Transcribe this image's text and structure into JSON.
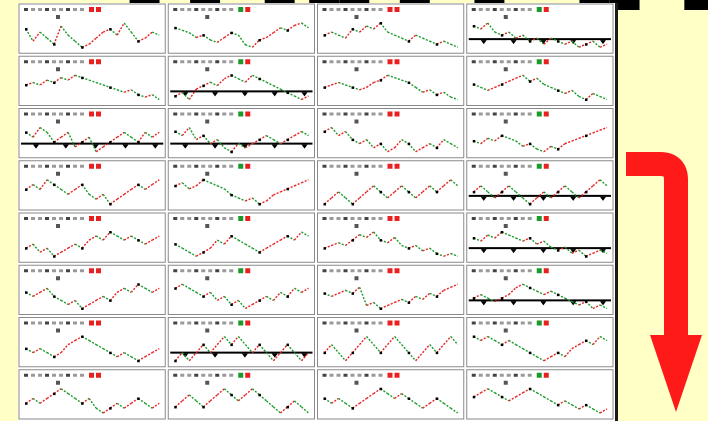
{
  "chart_data": {
    "type": "line",
    "layout": {
      "rows": 8,
      "cols": 4
    },
    "panel_header_text": [
      "",
      "",
      "",
      ""
    ],
    "series_colors": {
      "up": "#e82020",
      "down": "#1a9a2a",
      "base": "#000000"
    },
    "panels": [
      {
        "r": 0,
        "c": 0,
        "y": [
          3,
          -1,
          2,
          0,
          -2,
          4,
          1,
          -1,
          -3,
          -2,
          0,
          2,
          3,
          1,
          5,
          2,
          -1,
          0,
          2,
          1
        ],
        "baseline": false
      },
      {
        "r": 0,
        "c": 1,
        "y": [
          2,
          1,
          0,
          -2,
          -1,
          -3,
          -4,
          -2,
          0,
          -1,
          -5,
          -6,
          -3,
          -2,
          0,
          2,
          1,
          3,
          4,
          2
        ],
        "baseline": false
      },
      {
        "r": 0,
        "c": 2,
        "y": [
          0,
          1,
          0,
          -1,
          2,
          1,
          3,
          2,
          4,
          1,
          0,
          -1,
          -2,
          0,
          -1,
          -2,
          -3,
          -2,
          -3,
          -4
        ],
        "baseline": false
      },
      {
        "r": 0,
        "c": 3,
        "y": [
          3,
          2,
          4,
          1,
          0,
          1,
          -1,
          0,
          -2,
          -1,
          -3,
          -1,
          -2,
          -3,
          -2,
          -4,
          -3,
          -2,
          -4,
          -3
        ],
        "baseline": true
      },
      {
        "r": 1,
        "c": 0,
        "y": [
          1,
          2,
          1,
          3,
          2,
          4,
          3,
          5,
          4,
          3,
          2,
          1,
          0,
          -1,
          -2,
          -1,
          -3,
          -4,
          -3,
          -5
        ],
        "baseline": false
      },
      {
        "r": 1,
        "c": 1,
        "y": [
          -2,
          -1,
          -3,
          0,
          1,
          2,
          1,
          3,
          4,
          3,
          2,
          4,
          3,
          2,
          1,
          0,
          -1,
          -2,
          -3,
          -2
        ],
        "baseline": true
      },
      {
        "r": 1,
        "c": 2,
        "y": [
          0,
          1,
          2,
          1,
          0,
          -1,
          0,
          2,
          3,
          5,
          4,
          3,
          2,
          0,
          -2,
          -1,
          -3,
          -2,
          -4,
          -5
        ],
        "baseline": false
      },
      {
        "r": 1,
        "c": 3,
        "y": [
          1,
          0,
          -1,
          0,
          1,
          2,
          3,
          4,
          2,
          3,
          1,
          0,
          -1,
          -2,
          -1,
          -3,
          -4,
          -2,
          -3,
          -4
        ],
        "baseline": false
      },
      {
        "r": 2,
        "c": 0,
        "y": [
          1,
          0,
          2,
          1,
          -1,
          0,
          1,
          -2,
          -1,
          0,
          -3,
          -2,
          -1,
          0,
          1,
          0,
          -1,
          1,
          0,
          1
        ],
        "baseline": true
      },
      {
        "r": 2,
        "c": 1,
        "y": [
          2,
          1,
          3,
          0,
          1,
          -1,
          0,
          -2,
          -3,
          -1,
          -2,
          -1,
          0,
          1,
          0,
          -1,
          0,
          1,
          2,
          1
        ],
        "baseline": true
      },
      {
        "r": 2,
        "c": 2,
        "y": [
          1,
          2,
          0,
          1,
          -1,
          -2,
          -1,
          -3,
          -2,
          -4,
          -3,
          -1,
          -2,
          -4,
          -3,
          -2,
          -3,
          -1,
          -2,
          -3
        ],
        "baseline": false
      },
      {
        "r": 2,
        "c": 3,
        "y": [
          0,
          -1,
          1,
          0,
          2,
          1,
          0,
          -2,
          -1,
          -3,
          -4,
          -2,
          -3,
          -1,
          0,
          1,
          2,
          3,
          4,
          5
        ],
        "baseline": false
      },
      {
        "r": 3,
        "c": 0,
        "y": [
          0,
          1,
          0,
          2,
          1,
          0,
          -1,
          0,
          1,
          -1,
          -2,
          -1,
          -3,
          -2,
          -1,
          0,
          1,
          0,
          1,
          2
        ],
        "baseline": false
      },
      {
        "r": 3,
        "c": 1,
        "y": [
          1,
          2,
          0,
          1,
          3,
          2,
          1,
          0,
          -2,
          -3,
          -4,
          -3,
          -5,
          -4,
          -2,
          -1,
          0,
          1,
          2,
          3
        ],
        "baseline": false
      },
      {
        "r": 3,
        "c": 2,
        "y": [
          -1,
          0,
          1,
          0,
          -1,
          0,
          1,
          2,
          1,
          0,
          1,
          2,
          1,
          0,
          1,
          2,
          1,
          2,
          3,
          2
        ],
        "baseline": false
      },
      {
        "r": 3,
        "c": 3,
        "y": [
          1,
          2,
          1,
          0,
          1,
          2,
          1,
          0,
          -1,
          0,
          1,
          0,
          1,
          2,
          1,
          0,
          1,
          2,
          3,
          2
        ],
        "baseline": true
      },
      {
        "r": 4,
        "c": 0,
        "y": [
          0,
          1,
          -1,
          0,
          -2,
          -1,
          0,
          1,
          0,
          2,
          3,
          2,
          4,
          3,
          2,
          3,
          2,
          1,
          2,
          3
        ],
        "baseline": false
      },
      {
        "r": 4,
        "c": 1,
        "y": [
          1,
          0,
          -1,
          -2,
          -1,
          0,
          2,
          1,
          3,
          2,
          1,
          0,
          -1,
          0,
          1,
          2,
          3,
          2,
          4,
          3
        ],
        "baseline": false
      },
      {
        "r": 4,
        "c": 2,
        "y": [
          0,
          1,
          2,
          1,
          3,
          5,
          4,
          6,
          3,
          2,
          4,
          1,
          0,
          1,
          -1,
          0,
          -2,
          -3,
          -2,
          -3
        ],
        "baseline": false
      },
      {
        "r": 4,
        "c": 3,
        "y": [
          3,
          2,
          4,
          3,
          5,
          4,
          3,
          2,
          3,
          1,
          2,
          0,
          -1,
          0,
          -2,
          -1,
          -3,
          -2,
          -1,
          -2
        ],
        "baseline": true
      },
      {
        "r": 5,
        "c": 0,
        "y": [
          1,
          0,
          1,
          2,
          0,
          -1,
          -2,
          -1,
          -3,
          -2,
          -1,
          0,
          -1,
          1,
          2,
          1,
          3,
          2,
          1,
          2
        ],
        "baseline": false
      },
      {
        "r": 5,
        "c": 1,
        "y": [
          2,
          3,
          2,
          1,
          0,
          1,
          -1,
          0,
          -2,
          -1,
          -3,
          -2,
          -1,
          0,
          -1,
          1,
          0,
          2,
          1,
          2
        ],
        "baseline": false
      },
      {
        "r": 5,
        "c": 2,
        "y": [
          1,
          0,
          1,
          2,
          1,
          3,
          -3,
          -2,
          -4,
          -3,
          -2,
          -1,
          -2,
          0,
          -1,
          1,
          0,
          2,
          3,
          4
        ],
        "baseline": false
      },
      {
        "r": 5,
        "c": 3,
        "y": [
          0,
          1,
          0,
          -1,
          0,
          1,
          3,
          4,
          3,
          2,
          1,
          2,
          1,
          0,
          -1,
          -2,
          -1,
          -3,
          -2,
          -3
        ],
        "baseline": true
      },
      {
        "r": 6,
        "c": 0,
        "y": [
          1,
          0,
          1,
          0,
          -1,
          0,
          2,
          3,
          4,
          3,
          2,
          1,
          0,
          -1,
          0,
          -1,
          -2,
          -1,
          0,
          1
        ],
        "baseline": false
      },
      {
        "r": 6,
        "c": 1,
        "y": [
          -1,
          0,
          -1,
          0,
          1,
          0,
          1,
          2,
          1,
          2,
          1,
          0,
          1,
          0,
          -1,
          0,
          1,
          0,
          -1,
          0
        ],
        "baseline": true
      },
      {
        "r": 6,
        "c": 2,
        "y": [
          0,
          1,
          0,
          -1,
          0,
          1,
          2,
          1,
          0,
          1,
          2,
          1,
          0,
          -1,
          0,
          1,
          0,
          1,
          2,
          1
        ],
        "baseline": false
      },
      {
        "r": 6,
        "c": 3,
        "y": [
          2,
          1,
          2,
          1,
          0,
          1,
          0,
          -1,
          -2,
          -3,
          -4,
          -3,
          -2,
          -3,
          -1,
          0,
          1,
          0,
          2,
          1
        ],
        "baseline": false
      },
      {
        "r": 7,
        "c": 0,
        "y": [
          0,
          1,
          0,
          1,
          2,
          3,
          2,
          1,
          0,
          1,
          -1,
          -2,
          -1,
          0,
          -1,
          0,
          1,
          0,
          -1,
          0
        ],
        "baseline": false
      },
      {
        "r": 7,
        "c": 1,
        "y": [
          0,
          1,
          2,
          1,
          0,
          1,
          2,
          3,
          2,
          1,
          2,
          3,
          2,
          1,
          0,
          -1,
          0,
          1,
          0,
          -1
        ],
        "baseline": false
      },
      {
        "r": 7,
        "c": 2,
        "y": [
          1,
          0,
          1,
          0,
          -1,
          0,
          1,
          2,
          3,
          2,
          1,
          2,
          1,
          0,
          -1,
          0,
          1,
          0,
          -1,
          -2
        ],
        "baseline": false
      },
      {
        "r": 7,
        "c": 3,
        "y": [
          0,
          1,
          2,
          1,
          0,
          -1,
          0,
          1,
          2,
          1,
          0,
          -1,
          -2,
          -1,
          -2,
          -3,
          -2,
          -3,
          -4,
          -3
        ],
        "baseline": false
      }
    ]
  }
}
